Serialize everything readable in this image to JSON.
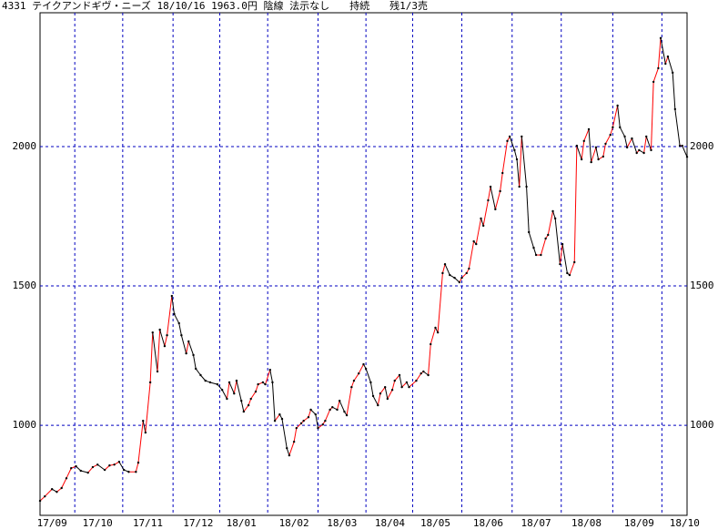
{
  "chart_data": {
    "type": "line",
    "title": "4331 テイクアンドギヴ・ニーズ 18/10/16 1963.0円 陰線 法示なし　　持続　　残1/3売",
    "x": [
      0,
      2,
      5,
      7,
      9,
      11,
      13,
      15,
      17,
      20,
      22,
      24,
      27,
      29,
      31,
      33,
      35,
      37,
      40,
      41,
      43,
      44,
      46,
      47,
      49,
      50,
      52,
      53,
      55,
      56,
      58,
      59,
      61,
      62,
      64,
      65,
      67,
      69,
      71,
      74,
      76,
      78,
      79,
      81,
      82,
      84,
      85,
      87,
      88,
      90,
      91,
      93,
      94,
      96,
      97,
      98,
      100,
      101,
      103,
      104,
      106,
      107,
      109,
      110,
      112,
      113,
      115,
      116,
      118,
      119,
      121,
      122,
      124,
      125,
      127,
      128,
      130,
      131,
      133,
      135,
      136,
      138,
      139,
      141,
      142,
      144,
      145,
      147,
      148,
      150,
      151,
      153,
      154,
      157,
      159,
      160,
      162,
      163,
      165,
      166,
      168,
      169,
      171,
      173,
      175,
      176,
      178,
      179,
      181,
      182,
      184,
      185,
      187,
      188,
      190,
      192,
      193,
      195,
      196,
      198,
      199,
      200,
      201,
      203,
      204,
      206,
      207,
      209,
      211,
      212,
      214,
      215,
      217,
      218,
      220,
      221,
      223,
      224,
      226,
      227,
      229,
      230,
      232,
      233,
      235,
      236,
      238,
      239,
      241,
      242,
      244,
      245,
      247,
      249,
      250,
      252,
      253,
      255,
      256,
      258,
      259,
      261,
      262,
      264,
      265,
      267,
      268,
      270
    ],
    "series": [
      {
        "values": [
          729,
          745,
          771,
          761,
          775,
          810,
          846,
          853,
          837,
          830,
          850,
          859,
          840,
          856,
          859,
          869,
          840,
          833,
          833,
          866,
          1016,
          974,
          1154,
          1333,
          1193,
          1343,
          1284,
          1323,
          1464,
          1399,
          1366,
          1323,
          1258,
          1301,
          1252,
          1203,
          1180,
          1160,
          1154,
          1147,
          1127,
          1095,
          1154,
          1114,
          1160,
          1088,
          1049,
          1072,
          1095,
          1121,
          1147,
          1154,
          1147,
          1199,
          1154,
          1016,
          1039,
          1023,
          918,
          892,
          941,
          990,
          1007,
          1016,
          1029,
          1056,
          1039,
          990,
          1003,
          1016,
          1056,
          1065,
          1056,
          1088,
          1049,
          1036,
          1137,
          1160,
          1186,
          1219,
          1203,
          1154,
          1105,
          1072,
          1114,
          1137,
          1095,
          1127,
          1160,
          1180,
          1137,
          1154,
          1137,
          1160,
          1186,
          1193,
          1180,
          1291,
          1350,
          1333,
          1546,
          1578,
          1539,
          1529,
          1513,
          1529,
          1546,
          1562,
          1660,
          1650,
          1742,
          1716,
          1807,
          1856,
          1775,
          1840,
          1905,
          2020,
          2036,
          1987,
          1954,
          1856,
          2036,
          1856,
          1693,
          1637,
          1611,
          1611,
          1670,
          1683,
          1768,
          1742,
          1578,
          1650,
          1546,
          1539,
          1585,
          2003,
          1954,
          2020,
          2062,
          1944,
          1997,
          1954,
          1964,
          2010,
          2042,
          2069,
          2147,
          2069,
          2036,
          1997,
          2029,
          1977,
          1987,
          1977,
          2036,
          1987,
          2232,
          2281,
          2389,
          2297,
          2323,
          2265,
          2134,
          2003,
          2003,
          1963
        ],
        "up_color": "#ff0000",
        "down_color": "#000000",
        "marker_color": "#000000"
      }
    ],
    "xlim": [
      0,
      270
    ],
    "xticks": [
      {
        "value": 5,
        "label": "17/09"
      },
      {
        "value": 24,
        "label": "17/10"
      },
      {
        "value": 45,
        "label": "17/11"
      },
      {
        "value": 66,
        "label": "17/12"
      },
      {
        "value": 84,
        "label": "18/01"
      },
      {
        "value": 106,
        "label": "18/02"
      },
      {
        "value": 126,
        "label": "18/03"
      },
      {
        "value": 146,
        "label": "18/04"
      },
      {
        "value": 165,
        "label": "18/05"
      },
      {
        "value": 187,
        "label": "18/06"
      },
      {
        "value": 207,
        "label": "18/07"
      },
      {
        "value": 228,
        "label": "18/08"
      },
      {
        "value": 250,
        "label": "18/09"
      },
      {
        "value": 269,
        "label": "18/10"
      }
    ],
    "ylim": [
      677,
      2480
    ],
    "yticks": [
      1000,
      1500,
      2000
    ],
    "grid": true,
    "grid_color": "#0000c0"
  }
}
